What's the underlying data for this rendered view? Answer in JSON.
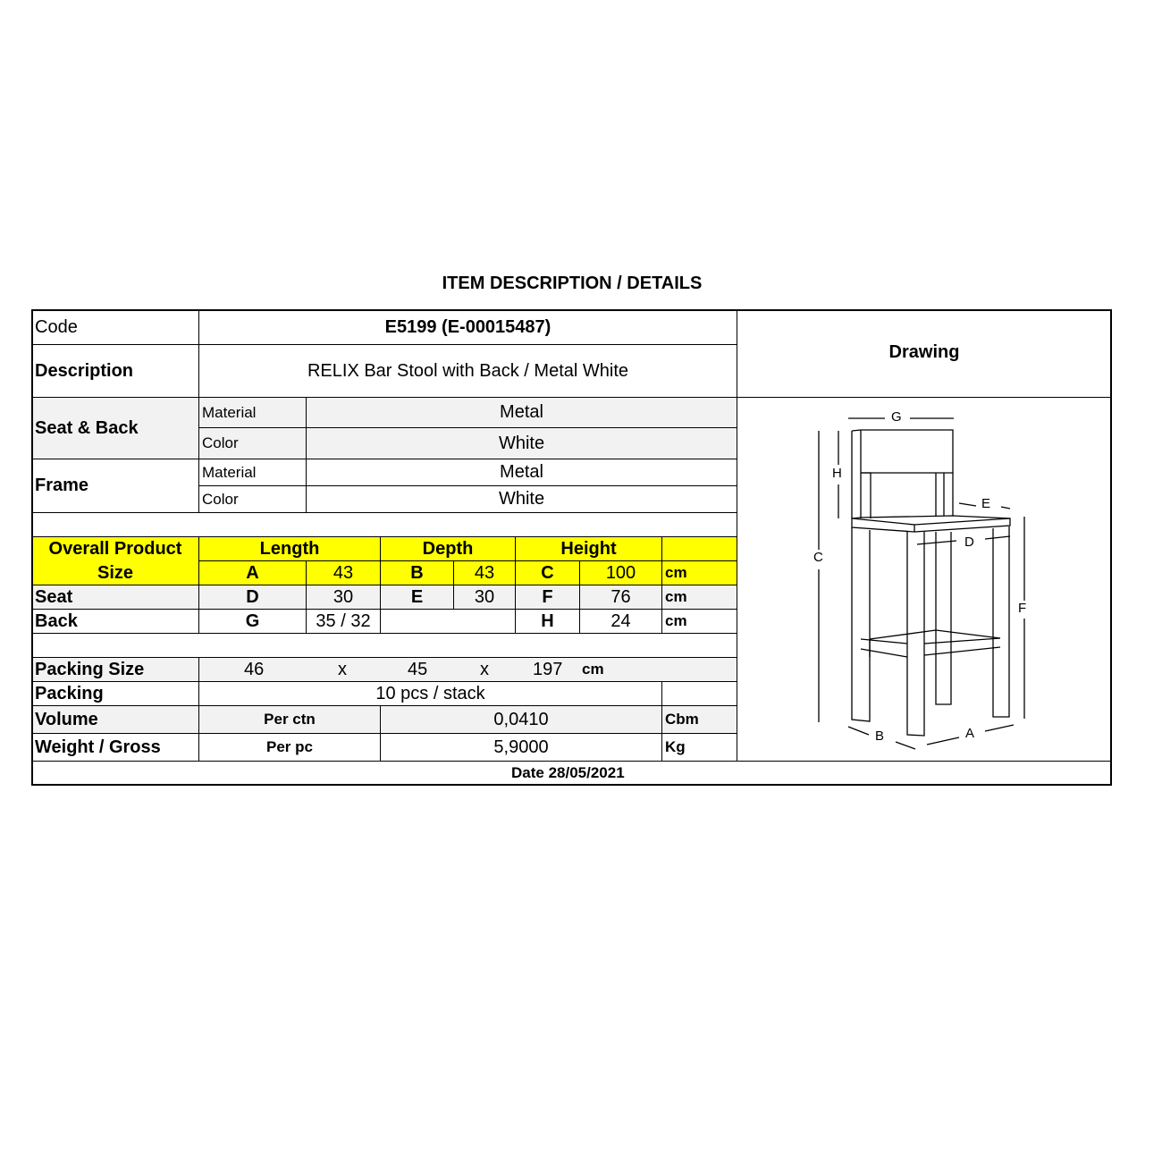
{
  "title": "ITEM DESCRIPTION / DETAILS",
  "code": {
    "label": "Code",
    "value": "E5199 (E-00015487)"
  },
  "description": {
    "label": "Description",
    "value": "RELIX Bar Stool with Back / Metal White"
  },
  "drawing_label": "Drawing",
  "seat_back": {
    "label": "Seat & Back",
    "material_label": "Material",
    "material": "Metal",
    "color_label": "Color",
    "color": "White"
  },
  "frame": {
    "label": "Frame",
    "material_label": "Material",
    "material": "Metal",
    "color_label": "Color",
    "color": "White"
  },
  "size": {
    "header": "Overall Product Size",
    "length": "Length",
    "depth": "Depth",
    "height": "Height",
    "overall": [
      "A",
      "43",
      "B",
      "43",
      "C",
      "100",
      "cm"
    ],
    "seat_label": "Seat",
    "seat": [
      "D",
      "30",
      "E",
      "30",
      "F",
      "76",
      "cm"
    ],
    "back_label": "Back",
    "back": [
      "G",
      "35 / 32",
      "H",
      "24",
      "cm"
    ]
  },
  "packing_size": {
    "label": "Packing Size",
    "l": "46",
    "x1": "x",
    "w": "45",
    "x2": "x",
    "h": "197",
    "unit": "cm"
  },
  "packing": {
    "label": "Packing",
    "value": "10 pcs / stack"
  },
  "volume": {
    "label": "Volume",
    "per": "Per ctn",
    "value": "0,0410",
    "unit": "Cbm"
  },
  "weight": {
    "label": "Weight / Gross",
    "per": "Per pc",
    "value": "5,9000",
    "unit": "Kg"
  },
  "date": "Date 28/05/2021",
  "drawing_dims": [
    "A",
    "B",
    "C",
    "D",
    "E",
    "F",
    "G",
    "H"
  ],
  "colors": {
    "highlight": "#ffff00",
    "shade": "#f2f2f2"
  }
}
